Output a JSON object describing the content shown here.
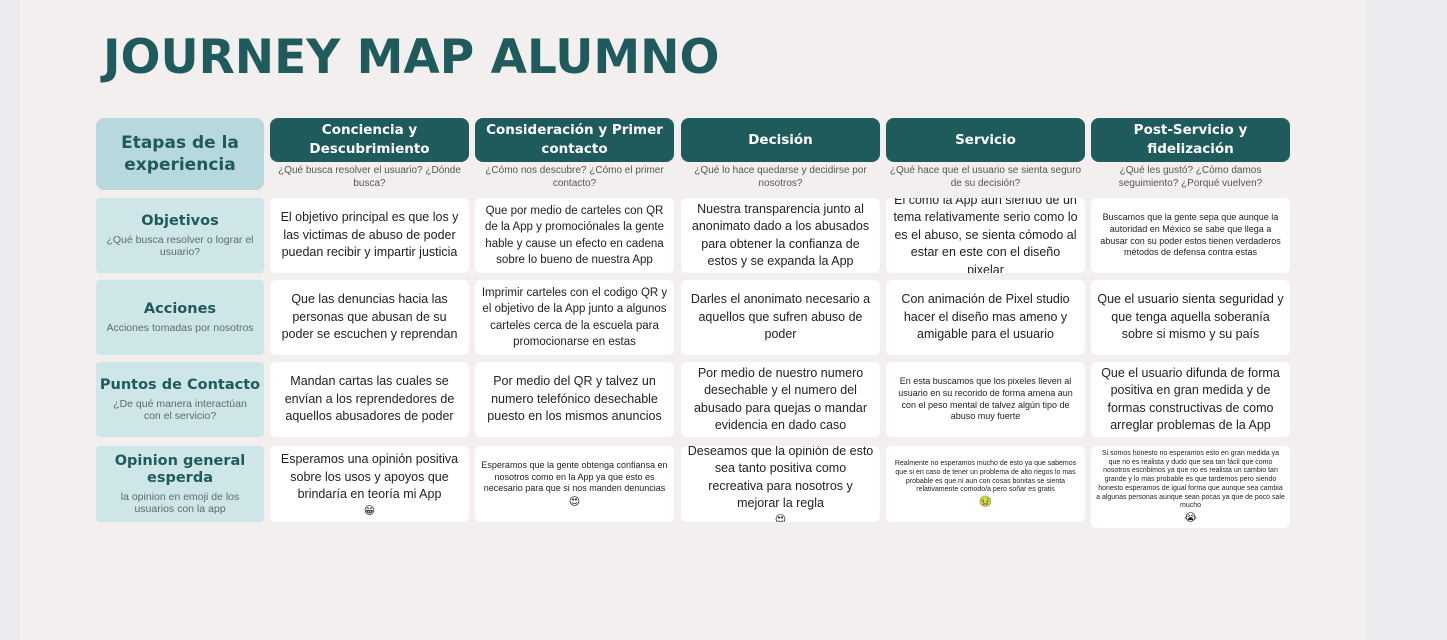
{
  "title": "JOURNEY MAP ALUMNO",
  "etapas_label": "Etapas de la experiencia",
  "stages": [
    {
      "title": "Conciencia y Descubrimiento",
      "sub": "¿Qué busca resolver el usuario? ¿Dónde busca?"
    },
    {
      "title": "Consideración y Primer contacto",
      "sub": "¿Cómo nos descubre? ¿Cómo el primer contacto?"
    },
    {
      "title": "Decisión",
      "sub": "¿Qué lo hace quedarse y decidirse por nosotros?"
    },
    {
      "title": "Servicio",
      "sub": "¿Qué hace que el usuario se sienta seguro de su decisión?"
    },
    {
      "title": "Post-Servicio y fidelización",
      "sub": "¿Qué les gustó? ¿Cómo damos seguimiento? ¿Porqué vuelven?"
    }
  ],
  "rows": [
    {
      "title": "Objetivos",
      "sub": "¿Qué busca resolver o lograr el usuario?",
      "cells": [
        {
          "text": "El objetivo principal es que los y las victimas de abuso de poder puedan recibir y impartir justicia"
        },
        {
          "text": "Que por medio de carteles con QR de la App y promociónales la gente hable y cause un efecto en cadena sobre lo bueno de nuestra App"
        },
        {
          "text": "Nuestra transparencia junto al anonimato dado a los abusados para obtener la confianza de estos y se expanda la App"
        },
        {
          "text": "El como la App aun siendo de un tema relativamente serio como lo es el abuso, se sienta cómodo al estar en este con el diseño pixelar"
        },
        {
          "text": "Buscamos que la gente sepa que aunque la autoridad en México se sabe que llega a abusar con su poder estos tienen verdaderos métodos de defensa contra estas"
        }
      ]
    },
    {
      "title": "Acciones",
      "sub": "Acciones tomadas por nosotros",
      "cells": [
        {
          "text": "Que las denuncias hacia las personas que abusan de su poder se escuchen y reprendan"
        },
        {
          "text": "Imprimir carteles con el codigo QR y el objetivo de la App junto a algunos carteles cerca de la escuela para promocionarse en estas"
        },
        {
          "text": "Darles el anonimato necesario a aquellos que sufren abuso de poder"
        },
        {
          "text": "Con animación de Pixel studio hacer el diseño mas ameno y amigable para el usuario"
        },
        {
          "text": "Que el usuario sienta seguridad y que tenga aquella soberanía sobre si mismo y su país"
        }
      ]
    },
    {
      "title": "Puntos de Contacto",
      "sub": "¿De qué manera interactúan con el servicio?",
      "cells": [
        {
          "text": "Mandan cartas las cuales se envían a los reprendedores de aquellos abusadores de poder"
        },
        {
          "text": "Por medio del QR y talvez un numero telefónico desechable puesto en los mismos anuncios"
        },
        {
          "text": "Por medio de nuestro numero desechable y el numero del abusado para quejas o mandar evidencia en dado caso"
        },
        {
          "text": "En esta buscamos que los pixeles lleven al usuario en su recorido de forma amena aun con el peso mental de talvez algún tipo de abuso muy fuerte"
        },
        {
          "text": "Que el usuario difunda de forma positiva en gran medida y de formas constructivas de como arreglar problemas de la App"
        }
      ]
    },
    {
      "title": "Opinion general esperda",
      "sub": "la opinion en emoji de los usuarios con la app",
      "cells": [
        {
          "text": "Esperamos una opinión positiva sobre los usos y apoyos que brindaría en teoría mi App",
          "emoji": "😁"
        },
        {
          "text": "Esperamos que la gente obtenga confiansa en nosotros como en la App ya que esto es necesario para que si nos manden denuncias",
          "emoji": "😍"
        },
        {
          "text": "Deseamos que la opinión de esto sea tanto positiva como recreativa para nosotros y mejorar la regla",
          "emoji": "😍"
        },
        {
          "text": "Realmente no esperamos mucho de esto ya que sabemos que si en caso de tener un problema de alto riegos lo mas probable es que ni aun con cosas bonitas se sienta relativamente comodo/a pero soñar es gratis",
          "emoji": "🤢"
        },
        {
          "text": "Si somos honesto no esperamos esto en gran medida ya que no es realista y dudo que sea tan fácil que como nosotros escribimos ya que no es realista un cambio tan grande y lo mas probable es que tardemos pero siendo honesto esperamos de igual forma que aunque sea cambia a algunas personas aunque sean pocas ya que de poco sale mucho",
          "emoji": "😭"
        }
      ]
    }
  ]
}
